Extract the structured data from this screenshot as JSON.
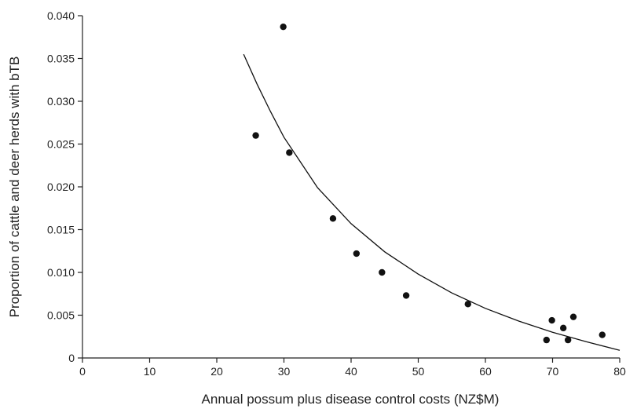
{
  "chart_data": {
    "type": "scatter",
    "title": "",
    "xlabel": "Annual possum plus disease control costs (NZ$M)",
    "ylabel": "Proportion of cattle and deer herds with bTB",
    "xlim": [
      0,
      80
    ],
    "ylim": [
      0,
      0.04
    ],
    "xticks": [
      0,
      10,
      20,
      30,
      40,
      50,
      60,
      70,
      80
    ],
    "yticks": [
      0,
      0.005,
      0.01,
      0.015,
      0.02,
      0.025,
      0.03,
      0.035,
      0.04
    ],
    "xtick_labels": [
      "0",
      "10",
      "20",
      "30",
      "40",
      "50",
      "60",
      "70",
      "80"
    ],
    "ytick_labels": [
      "0",
      "0.005",
      "0.010",
      "0.015",
      "0.020",
      "0.025",
      "0.030",
      "0.035",
      "0.040"
    ],
    "grid": false,
    "series": [
      {
        "type": "scatter",
        "color": "#111111",
        "points": [
          {
            "x": 25.8,
            "y": 0.026
          },
          {
            "x": 29.9,
            "y": 0.0387
          },
          {
            "x": 30.8,
            "y": 0.024
          },
          {
            "x": 37.3,
            "y": 0.0163
          },
          {
            "x": 40.8,
            "y": 0.0122
          },
          {
            "x": 44.6,
            "y": 0.01
          },
          {
            "x": 48.2,
            "y": 0.0073
          },
          {
            "x": 57.4,
            "y": 0.0063
          },
          {
            "x": 69.1,
            "y": 0.0021
          },
          {
            "x": 69.9,
            "y": 0.0044
          },
          {
            "x": 71.6,
            "y": 0.0035
          },
          {
            "x": 72.3,
            "y": 0.0021
          },
          {
            "x": 73.1,
            "y": 0.0048
          },
          {
            "x": 77.4,
            "y": 0.0027
          }
        ]
      },
      {
        "type": "line",
        "color": "#111111",
        "points": [
          {
            "x": 24.0,
            "y": 0.0355
          },
          {
            "x": 26.0,
            "y": 0.032
          },
          {
            "x": 28.0,
            "y": 0.0288
          },
          {
            "x": 30.0,
            "y": 0.0258
          },
          {
            "x": 35.0,
            "y": 0.0199
          },
          {
            "x": 40.0,
            "y": 0.0157
          },
          {
            "x": 45.0,
            "y": 0.0124
          },
          {
            "x": 50.0,
            "y": 0.0098
          },
          {
            "x": 55.0,
            "y": 0.0076
          },
          {
            "x": 60.0,
            "y": 0.0058
          },
          {
            "x": 65.0,
            "y": 0.0043
          },
          {
            "x": 70.0,
            "y": 0.003
          },
          {
            "x": 75.0,
            "y": 0.0019
          },
          {
            "x": 80.0,
            "y": 0.0009
          }
        ]
      }
    ]
  }
}
